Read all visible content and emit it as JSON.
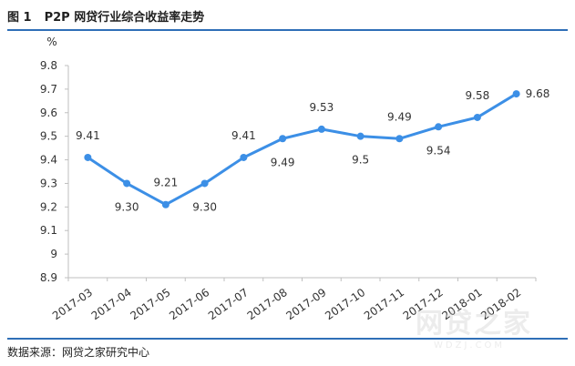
{
  "title": {
    "figure_number": "图 1",
    "text": "P2P 网贷行业综合收益率走势"
  },
  "source": "数据来源：网贷之家研究中心",
  "watermark": {
    "cn": "网贷之家",
    "en": "WDZJ.COM"
  },
  "colors": {
    "line": "#3c8fe6",
    "rule": "#2f6fb7",
    "axis": "#bfbfbf"
  },
  "chart_data": {
    "type": "line",
    "unit_label": "%",
    "categories": [
      "2017-03",
      "2017-04",
      "2017-05",
      "2017-06",
      "2017-07",
      "2017-08",
      "2017-09",
      "2017-10",
      "2017-11",
      "2017-12",
      "2018-01",
      "2018-02"
    ],
    "series": [
      {
        "values": [
          9.41,
          9.3,
          9.21,
          9.3,
          9.41,
          9.49,
          9.53,
          9.5,
          9.49,
          9.54,
          9.58,
          9.68
        ],
        "labels": [
          "9.41",
          "9.30",
          "9.21",
          "9.30",
          "9.41",
          "9.49",
          "9.53",
          "9.5",
          "9.49",
          "9.54",
          "9.58",
          "9.68"
        ],
        "label_positions": [
          "above",
          "below",
          "above",
          "below",
          "above",
          "below",
          "above",
          "below",
          "above",
          "below",
          "above",
          "right"
        ]
      }
    ],
    "y_ticks": [
      "9.8",
      "9.7",
      "9.6",
      "9.5",
      "9.4",
      "9.3",
      "9.2",
      "9.1",
      "9",
      "8.9"
    ],
    "ylim": [
      8.9,
      9.8
    ],
    "grid": false,
    "legend": "none"
  }
}
